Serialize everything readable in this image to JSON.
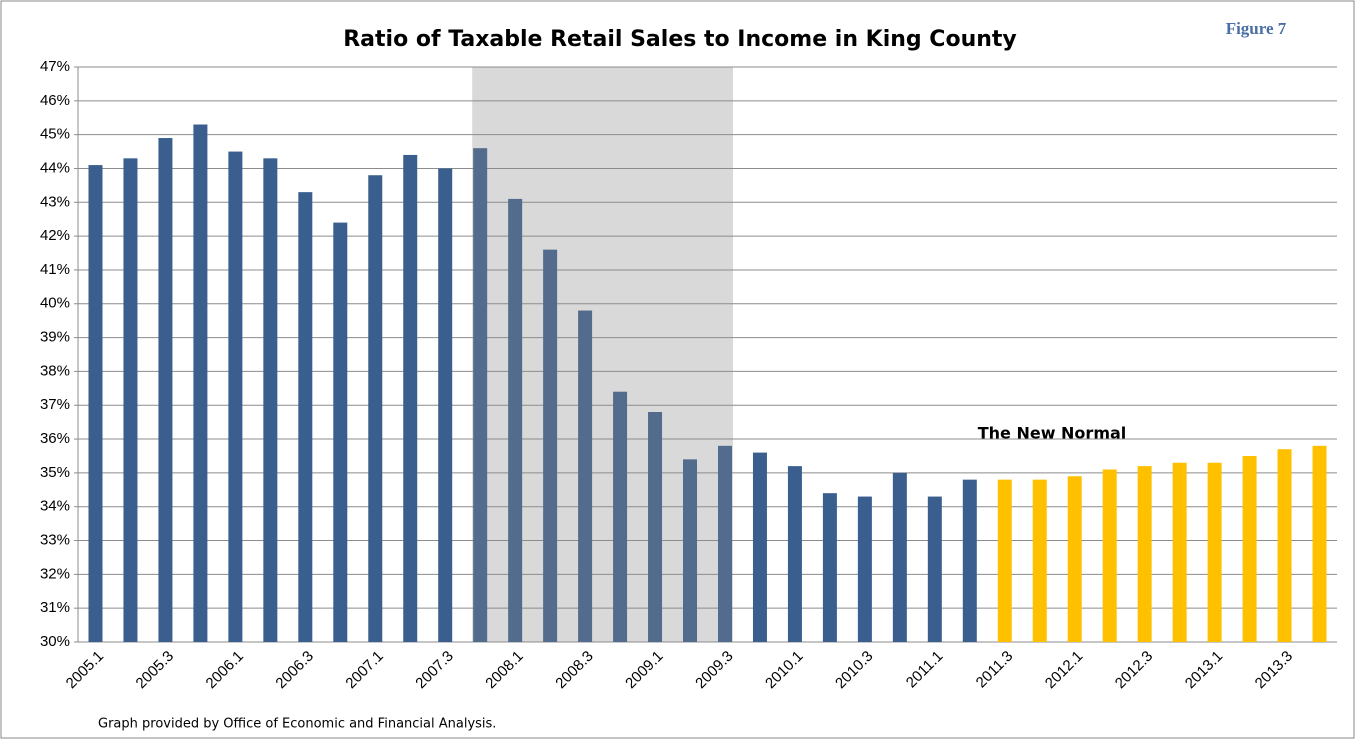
{
  "chart_data": {
    "type": "bar",
    "title": "Ratio of Taxable Retail Sales to Income in King County",
    "figure_label": "Figure 7",
    "annotation": "The New Normal",
    "source_note": "Graph provided by Office of Economic and Financial Analysis.",
    "categories": [
      "2005.1",
      null,
      "2005.3",
      null,
      "2006.1",
      null,
      "2006.3",
      null,
      "2007.1",
      null,
      "2007.3",
      null,
      "2008.1",
      null,
      "2008.3",
      null,
      "2009.1",
      null,
      "2009.3",
      null,
      "2010.1",
      null,
      "2010.3",
      null,
      "2011.1",
      null,
      "2011.3",
      null,
      "2012.1",
      null,
      "2012.3",
      null,
      "2013.1",
      null,
      "2013.3",
      null
    ],
    "values": [
      44.1,
      44.3,
      44.9,
      45.3,
      44.5,
      44.3,
      43.3,
      42.4,
      43.8,
      44.4,
      44.0,
      44.6,
      43.1,
      41.6,
      39.8,
      37.4,
      36.8,
      35.4,
      35.8,
      35.6,
      35.2,
      34.4,
      34.3,
      35.0,
      34.3,
      34.8,
      34.8,
      34.8,
      34.9,
      35.1,
      35.2,
      35.3,
      35.3,
      35.5,
      35.7,
      35.8
    ],
    "colors": [
      "#3a5f8f",
      "#3a5f8f",
      "#3a5f8f",
      "#3a5f8f",
      "#3a5f8f",
      "#3a5f8f",
      "#3a5f8f",
      "#3a5f8f",
      "#3a5f8f",
      "#3a5f8f",
      "#3a5f8f",
      "#536b8c",
      "#536b8c",
      "#536b8c",
      "#536b8c",
      "#536b8c",
      "#536b8c",
      "#536b8c",
      "#536b8c",
      "#3a5f8f",
      "#3a5f8f",
      "#3a5f8f",
      "#3a5f8f",
      "#3a5f8f",
      "#3a5f8f",
      "#3a5f8f",
      "#ffc000",
      "#ffc000",
      "#ffc000",
      "#ffc000",
      "#ffc000",
      "#ffc000",
      "#ffc000",
      "#ffc000",
      "#ffc000",
      "#ffc000"
    ],
    "shaded_band": [
      11,
      18
    ],
    "shade_color": "#d9d9d9",
    "ylim": [
      30,
      47
    ],
    "yticks": [
      {
        "value": 30,
        "label": "30%"
      },
      {
        "value": 31,
        "label": "31%"
      },
      {
        "value": 32,
        "label": "32%"
      },
      {
        "value": 33,
        "label": "33%"
      },
      {
        "value": 34,
        "label": "34%"
      },
      {
        "value": 35,
        "label": "35%"
      },
      {
        "value": 36,
        "label": "36%"
      },
      {
        "value": 37,
        "label": "37%"
      },
      {
        "value": 38,
        "label": "38%"
      },
      {
        "value": 39,
        "label": "39%"
      },
      {
        "value": 40,
        "label": "40%"
      },
      {
        "value": 41,
        "label": "41%"
      },
      {
        "value": 42,
        "label": "42%"
      },
      {
        "value": 43,
        "label": "43%"
      },
      {
        "value": 44,
        "label": "44%"
      },
      {
        "value": 45,
        "label": "45%"
      },
      {
        "value": 46,
        "label": "46%"
      },
      {
        "value": 47,
        "label": "47%"
      }
    ],
    "grid": true
  }
}
